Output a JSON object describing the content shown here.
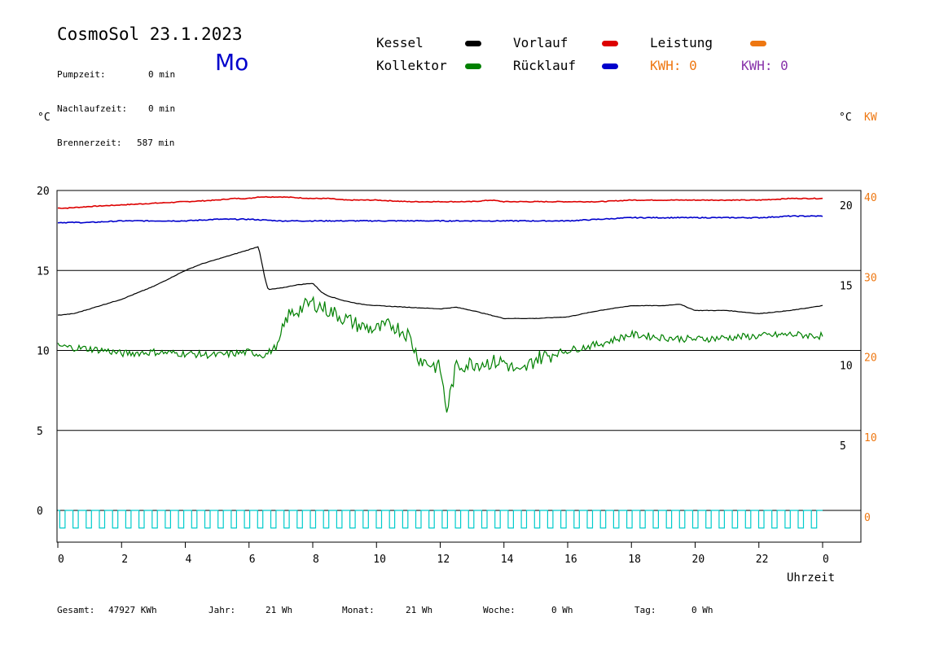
{
  "header": {
    "title": "CosmoSol 23.1.2023",
    "weekday": "Mo",
    "stats": [
      {
        "label": "Pumpzeit:",
        "value": "0 min"
      },
      {
        "label": "Nachlaufzeit:",
        "value": "0 min"
      },
      {
        "label": "Brennerzeit:",
        "value": "587 min"
      }
    ]
  },
  "legend": {
    "kessel": {
      "label": "Kessel",
      "color": "#000000"
    },
    "kollektor": {
      "label": "Kollektor",
      "color": "#008000"
    },
    "vorlauf": {
      "label": "Vorlauf",
      "color": "#dd0000"
    },
    "ruecklauf": {
      "label": "Rücklauf",
      "color": "#0000cc"
    },
    "leistung": {
      "label": "Leistung",
      "color": "#ee7711"
    },
    "kwh_orange": "KWH: 0",
    "kwh_purple": "KWH: 0",
    "kwh_purple_color": "#8833aa"
  },
  "axis_units": {
    "left": "°C",
    "right": "°C",
    "right2": "KW"
  },
  "footer": {
    "gesamt_label": "Gesamt:",
    "gesamt_value": "47927 KWh",
    "jahr_label": "Jahr:",
    "jahr_value": "21 Wh",
    "monat_label": "Monat:",
    "monat_value": "21 Wh",
    "woche_label": "Woche:",
    "woche_value": "0 Wh",
    "tag_label": "Tag:",
    "tag_value": "0 Wh"
  },
  "chart_data": {
    "type": "line",
    "xlabel": "Uhrzeit",
    "x_ticks": [
      "0",
      "2",
      "4",
      "6",
      "8",
      "10",
      "12",
      "14",
      "16",
      "18",
      "20",
      "22",
      "0"
    ],
    "xlim": [
      0,
      24
    ],
    "left_ticks": [
      "20",
      "15",
      "10",
      "5",
      "0"
    ],
    "right_ticks": [
      "20",
      "15",
      "10",
      "5"
    ],
    "right2_ticks": [
      "40",
      "30",
      "20",
      "10",
      "0"
    ],
    "ylim": [
      -2,
      20
    ],
    "grid": true,
    "series": [
      {
        "name": "Vorlauf",
        "color": "#dd0000",
        "x": [
          0,
          0.3,
          1,
          2,
          3,
          4,
          5,
          5.5,
          6,
          6.3,
          7,
          8,
          8.5,
          9,
          10,
          11,
          12,
          13,
          13.6,
          14,
          15,
          16,
          17,
          18,
          19,
          20,
          21,
          22,
          23,
          24
        ],
        "y": [
          18.9,
          18.9,
          19.0,
          19.1,
          19.2,
          19.3,
          19.4,
          19.5,
          19.5,
          19.6,
          19.6,
          19.5,
          19.5,
          19.4,
          19.4,
          19.3,
          19.3,
          19.3,
          19.4,
          19.3,
          19.3,
          19.3,
          19.3,
          19.4,
          19.4,
          19.4,
          19.4,
          19.4,
          19.5,
          19.5
        ]
      },
      {
        "name": "Rücklauf",
        "color": "#0000cc",
        "x": [
          0,
          1,
          2,
          3,
          4,
          5,
          6,
          7,
          8,
          9,
          10,
          11,
          12,
          13,
          14,
          15,
          16,
          17,
          18,
          19,
          20,
          21,
          22,
          23,
          24
        ],
        "y": [
          18.0,
          18.0,
          18.1,
          18.1,
          18.1,
          18.2,
          18.2,
          18.1,
          18.1,
          18.1,
          18.1,
          18.1,
          18.1,
          18.1,
          18.1,
          18.1,
          18.1,
          18.2,
          18.3,
          18.3,
          18.3,
          18.3,
          18.3,
          18.4,
          18.4
        ]
      },
      {
        "name": "Kessel",
        "color": "#000000",
        "x": [
          0,
          0.5,
          1,
          1.5,
          2,
          2.5,
          3,
          3.5,
          4,
          4.5,
          5,
          5.5,
          6,
          6.3,
          6.5,
          6.6,
          7,
          7.5,
          8,
          8.3,
          8.5,
          9,
          9.5,
          10,
          11,
          12,
          12.5,
          13,
          14,
          15,
          16,
          17,
          18,
          19,
          19.5,
          20,
          21,
          22,
          23,
          24
        ],
        "y": [
          12.2,
          12.3,
          12.6,
          12.9,
          13.2,
          13.6,
          14.0,
          14.5,
          15.0,
          15.4,
          15.7,
          16.0,
          16.3,
          16.5,
          14.5,
          13.8,
          13.9,
          14.1,
          14.2,
          13.6,
          13.4,
          13.1,
          12.9,
          12.8,
          12.7,
          12.6,
          12.7,
          12.5,
          12.0,
          12.0,
          12.1,
          12.5,
          12.8,
          12.8,
          12.9,
          12.5,
          12.5,
          12.3,
          12.5,
          12.8
        ]
      },
      {
        "name": "Kollektor",
        "color": "#008000",
        "x": [
          0,
          0.3,
          1,
          1.5,
          2,
          3,
          4,
          5,
          5.5,
          6,
          6.5,
          6.9,
          7.2,
          7.5,
          8,
          8.5,
          9,
          9.5,
          10,
          10.5,
          11,
          11.3,
          11.5,
          12,
          12.2,
          12.5,
          13,
          14,
          14.5,
          15,
          16,
          17,
          18,
          19,
          20,
          21,
          22,
          23,
          24
        ],
        "y": [
          10.3,
          10.2,
          10.1,
          10.0,
          9.8,
          9.9,
          9.8,
          9.7,
          9.8,
          9.9,
          9.7,
          10.3,
          12.1,
          12.5,
          13.0,
          12.5,
          12.0,
          11.5,
          11.3,
          11.6,
          11.0,
          9.6,
          9.3,
          8.9,
          6.2,
          9.0,
          9.2,
          9.3,
          8.5,
          9.5,
          10.0,
          10.4,
          11.0,
          10.8,
          10.7,
          10.8,
          10.9,
          11.0,
          10.9
        ]
      }
    ],
    "pump_signal": {
      "name": "Pumpe",
      "color": "#00cccc",
      "y_low": -1,
      "y_high": 0
    }
  }
}
